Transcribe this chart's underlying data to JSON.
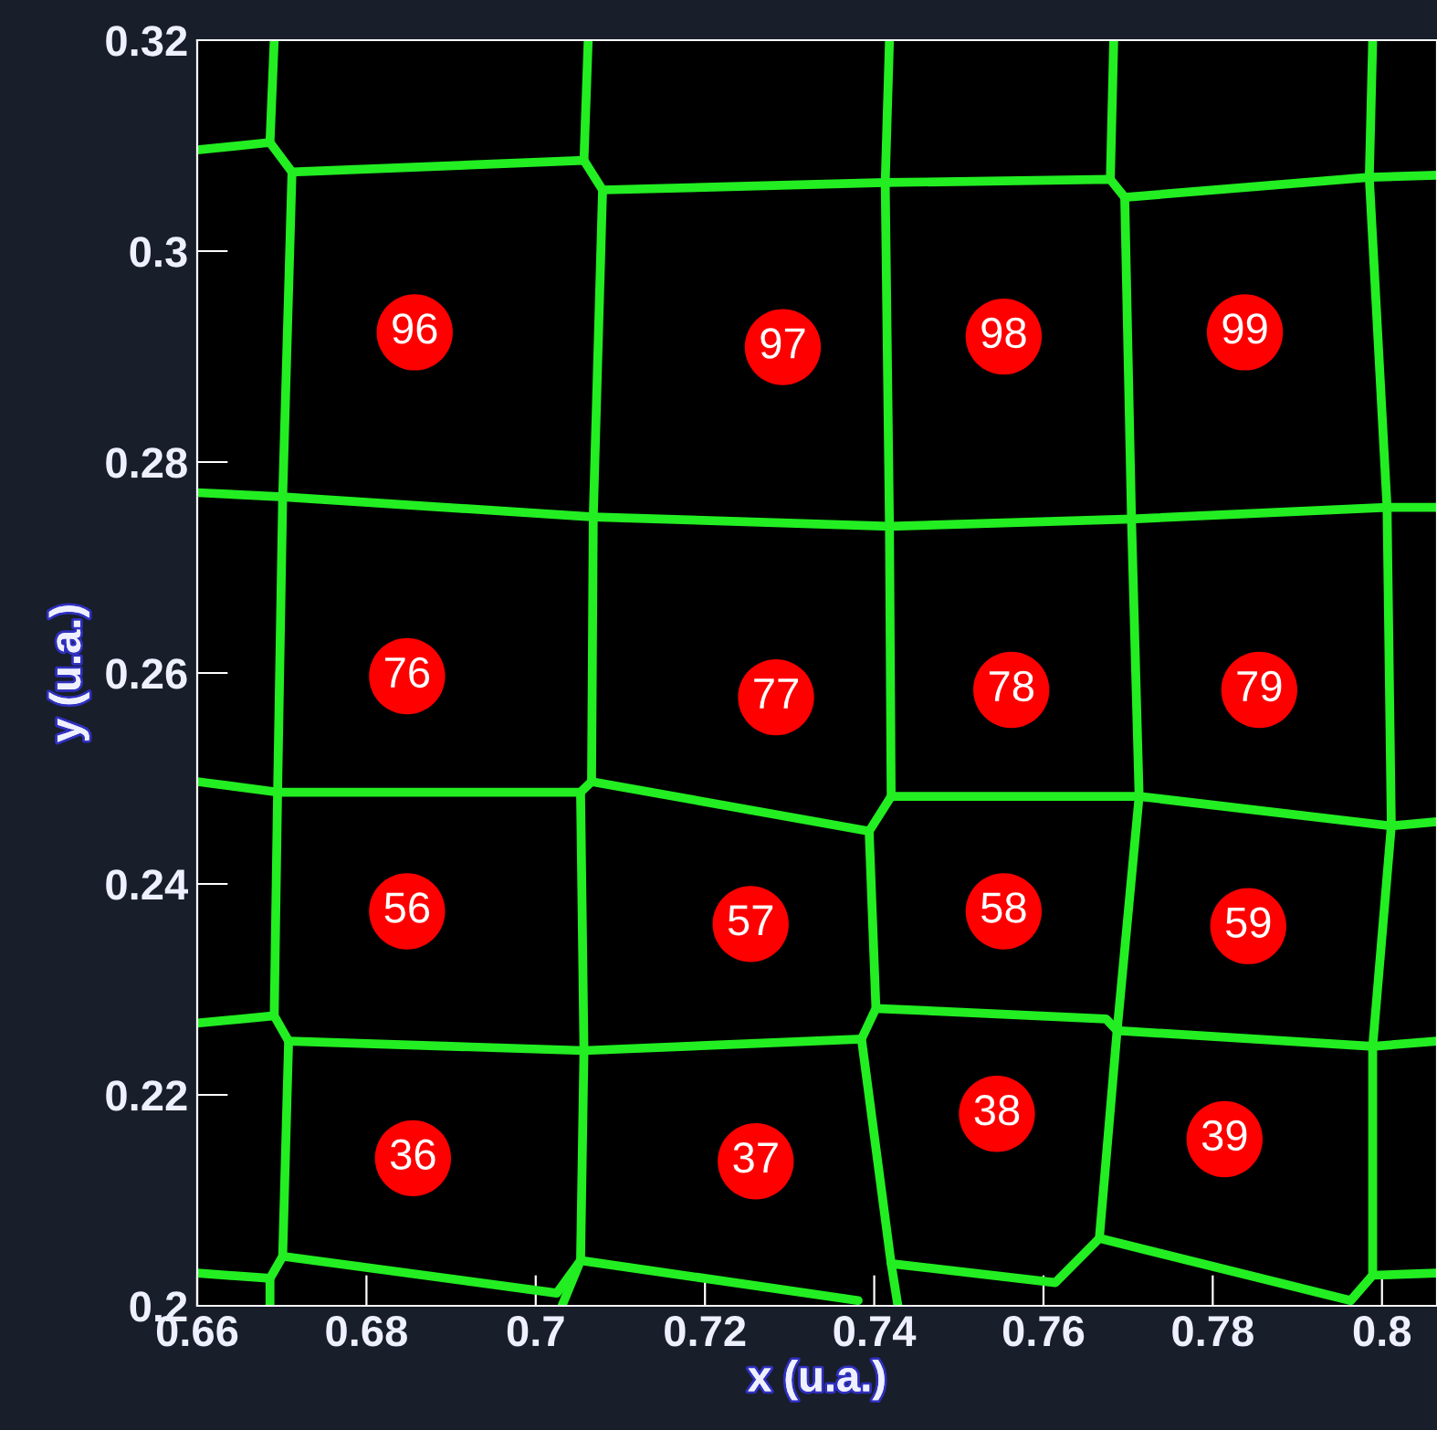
{
  "chart_data": {
    "type": "scatter",
    "xlabel": "x (u.a.)",
    "ylabel": "y (u.a.)",
    "xlim": [
      0.66,
      0.8065
    ],
    "ylim": [
      0.2,
      0.32
    ],
    "xticks": [
      0.66,
      0.68,
      0.7,
      0.72,
      0.74,
      0.76,
      0.78,
      0.8
    ],
    "yticks": [
      0.2,
      0.22,
      0.24,
      0.26,
      0.28,
      0.3,
      0.32
    ],
    "grid": false,
    "annotations": [
      {
        "text": "96",
        "x": 0.6857,
        "y": 0.2923
      },
      {
        "text": "97",
        "x": 0.7292,
        "y": 0.2909
      },
      {
        "text": "98",
        "x": 0.7553,
        "y": 0.2919
      },
      {
        "text": "99",
        "x": 0.7838,
        "y": 0.2923
      },
      {
        "text": "76",
        "x": 0.6848,
        "y": 0.2597
      },
      {
        "text": "77",
        "x": 0.7284,
        "y": 0.2577
      },
      {
        "text": "78",
        "x": 0.7562,
        "y": 0.2584
      },
      {
        "text": "79",
        "x": 0.7855,
        "y": 0.2584
      },
      {
        "text": "56",
        "x": 0.6848,
        "y": 0.2374
      },
      {
        "text": "57",
        "x": 0.7254,
        "y": 0.2362
      },
      {
        "text": "58",
        "x": 0.7553,
        "y": 0.2374
      },
      {
        "text": "59",
        "x": 0.7842,
        "y": 0.236
      },
      {
        "text": "36",
        "x": 0.6855,
        "y": 0.214
      },
      {
        "text": "37",
        "x": 0.726,
        "y": 0.2137
      },
      {
        "text": "38",
        "x": 0.7545,
        "y": 0.2182
      },
      {
        "text": "39",
        "x": 0.7814,
        "y": 0.2158
      }
    ],
    "series": [
      {
        "color": "#ff0000",
        "marker": "circle",
        "x": [
          0.6857,
          0.7292,
          0.7553,
          0.7838,
          0.6848,
          0.7284,
          0.7562,
          0.7855,
          0.6848,
          0.7254,
          0.7553,
          0.7842,
          0.6855,
          0.726,
          0.7545,
          0.7814
        ],
        "values": [
          0.2923,
          0.2909,
          0.2919,
          0.2923,
          0.2597,
          0.2577,
          0.2584,
          0.2584,
          0.2374,
          0.2362,
          0.2374,
          0.236,
          0.214,
          0.2137,
          0.2182,
          0.2158
        ]
      },
      {
        "type": "line",
        "color": "#22ee22",
        "line_style": "solid",
        "x": [
          0.66,
          0.6686,
          0.6712,
          0.7057,
          0.7079,
          0.7413,
          0.7679,
          0.7696,
          0.7985,
          0.8065
        ],
        "values": [
          0.3096,
          0.3103,
          0.3075,
          0.3086,
          0.3058,
          0.3065,
          0.3068,
          0.3051,
          0.307,
          0.3072
        ]
      },
      {
        "type": "line",
        "color": "#22ee22",
        "x": [
          0.6691,
          0.6686
        ],
        "values": [
          0.32,
          0.3103
        ]
      },
      {
        "type": "line",
        "color": "#22ee22",
        "x": [
          0.7062,
          0.7057
        ],
        "values": [
          0.32,
          0.3086
        ]
      },
      {
        "type": "line",
        "color": "#22ee22",
        "x": [
          0.7683,
          0.7679
        ],
        "values": [
          0.32,
          0.3068
        ]
      },
      {
        "type": "line",
        "color": "#22ee22",
        "x": [
          0.66,
          0.6701,
          0.7068,
          0.7418,
          0.7704,
          0.8006,
          0.8065
        ],
        "values": [
          0.2771,
          0.2767,
          0.2748,
          0.2739,
          0.2746,
          0.2757,
          0.2757
        ]
      },
      {
        "type": "line",
        "color": "#22ee22",
        "x": [
          0.6712,
          0.6701,
          0.6695,
          0.6691,
          0.6708,
          0.6701,
          0.6686,
          0.6686
        ],
        "values": [
          0.3075,
          0.2767,
          0.2487,
          0.2275,
          0.2251,
          0.2047,
          0.2026,
          0.2
        ]
      },
      {
        "type": "line",
        "color": "#22ee22",
        "x": [
          0.7079,
          0.7068,
          0.7066
        ],
        "values": [
          0.3058,
          0.2748,
          0.2497
        ]
      },
      {
        "type": "line",
        "color": "#22ee22",
        "x": [
          0.66,
          0.6695,
          0.7053,
          0.7066,
          0.7394,
          0.742,
          0.7713,
          0.8011,
          0.8065
        ],
        "values": [
          0.2497,
          0.2487,
          0.2487,
          0.2497,
          0.245,
          0.2483,
          0.2483,
          0.2455,
          0.2459
        ]
      },
      {
        "type": "line",
        "color": "#22ee22",
        "x": [
          0.7053,
          0.7057,
          0.7053,
          0.7031
        ],
        "values": [
          0.2487,
          0.2242,
          0.2043,
          0.2
        ]
      },
      {
        "type": "line",
        "color": "#22ee22",
        "x": [
          0.7418,
          0.7413,
          0.7418,
          0.742
        ],
        "values": [
          0.32,
          0.3065,
          0.2739,
          0.2483
        ]
      },
      {
        "type": "line",
        "color": "#22ee22",
        "x": [
          0.7394,
          0.7402,
          0.7385,
          0.742,
          0.7428
        ],
        "values": [
          0.245,
          0.2282,
          0.2253,
          0.204,
          0.2
        ]
      },
      {
        "type": "line",
        "color": "#22ee22",
        "x": [
          0.7696,
          0.7704,
          0.7713,
          0.7687,
          0.7666
        ],
        "values": [
          0.3051,
          0.2746,
          0.2483,
          0.2261,
          0.2064
        ]
      },
      {
        "type": "line",
        "color": "#22ee22",
        "x": [
          0.7989,
          0.7985,
          0.8006,
          0.8011,
          0.7989,
          0.7989
        ],
        "values": [
          0.32,
          0.307,
          0.2757,
          0.2455,
          0.2246,
          0.2029
        ]
      },
      {
        "type": "line",
        "color": "#22ee22",
        "x": [
          0.66,
          0.6691
        ],
        "values": [
          0.2268,
          0.2275
        ]
      },
      {
        "type": "line",
        "color": "#22ee22",
        "x": [
          0.6708,
          0.7057,
          0.7385
        ],
        "values": [
          0.2251,
          0.2242,
          0.2253
        ]
      },
      {
        "type": "line",
        "color": "#22ee22",
        "x": [
          0.7402,
          0.7674,
          0.7687,
          0.7989,
          0.8065
        ],
        "values": [
          0.2282,
          0.2272,
          0.2261,
          0.2246,
          0.2251
        ]
      },
      {
        "type": "line",
        "color": "#22ee22",
        "x": [
          0.66,
          0.6686
        ],
        "values": [
          0.2031,
          0.2026
        ]
      },
      {
        "type": "line",
        "color": "#22ee22",
        "x": [
          0.6701,
          0.7025,
          0.7053,
          0.7381
        ],
        "values": [
          0.2047,
          0.2012,
          0.2043,
          0.2005
        ]
      },
      {
        "type": "line",
        "color": "#22ee22",
        "x": [
          0.742,
          0.7614,
          0.7666,
          0.7963,
          0.7989,
          0.8065
        ],
        "values": [
          0.204,
          0.2022,
          0.2064,
          0.2005,
          0.2029,
          0.2031
        ]
      }
    ]
  }
}
